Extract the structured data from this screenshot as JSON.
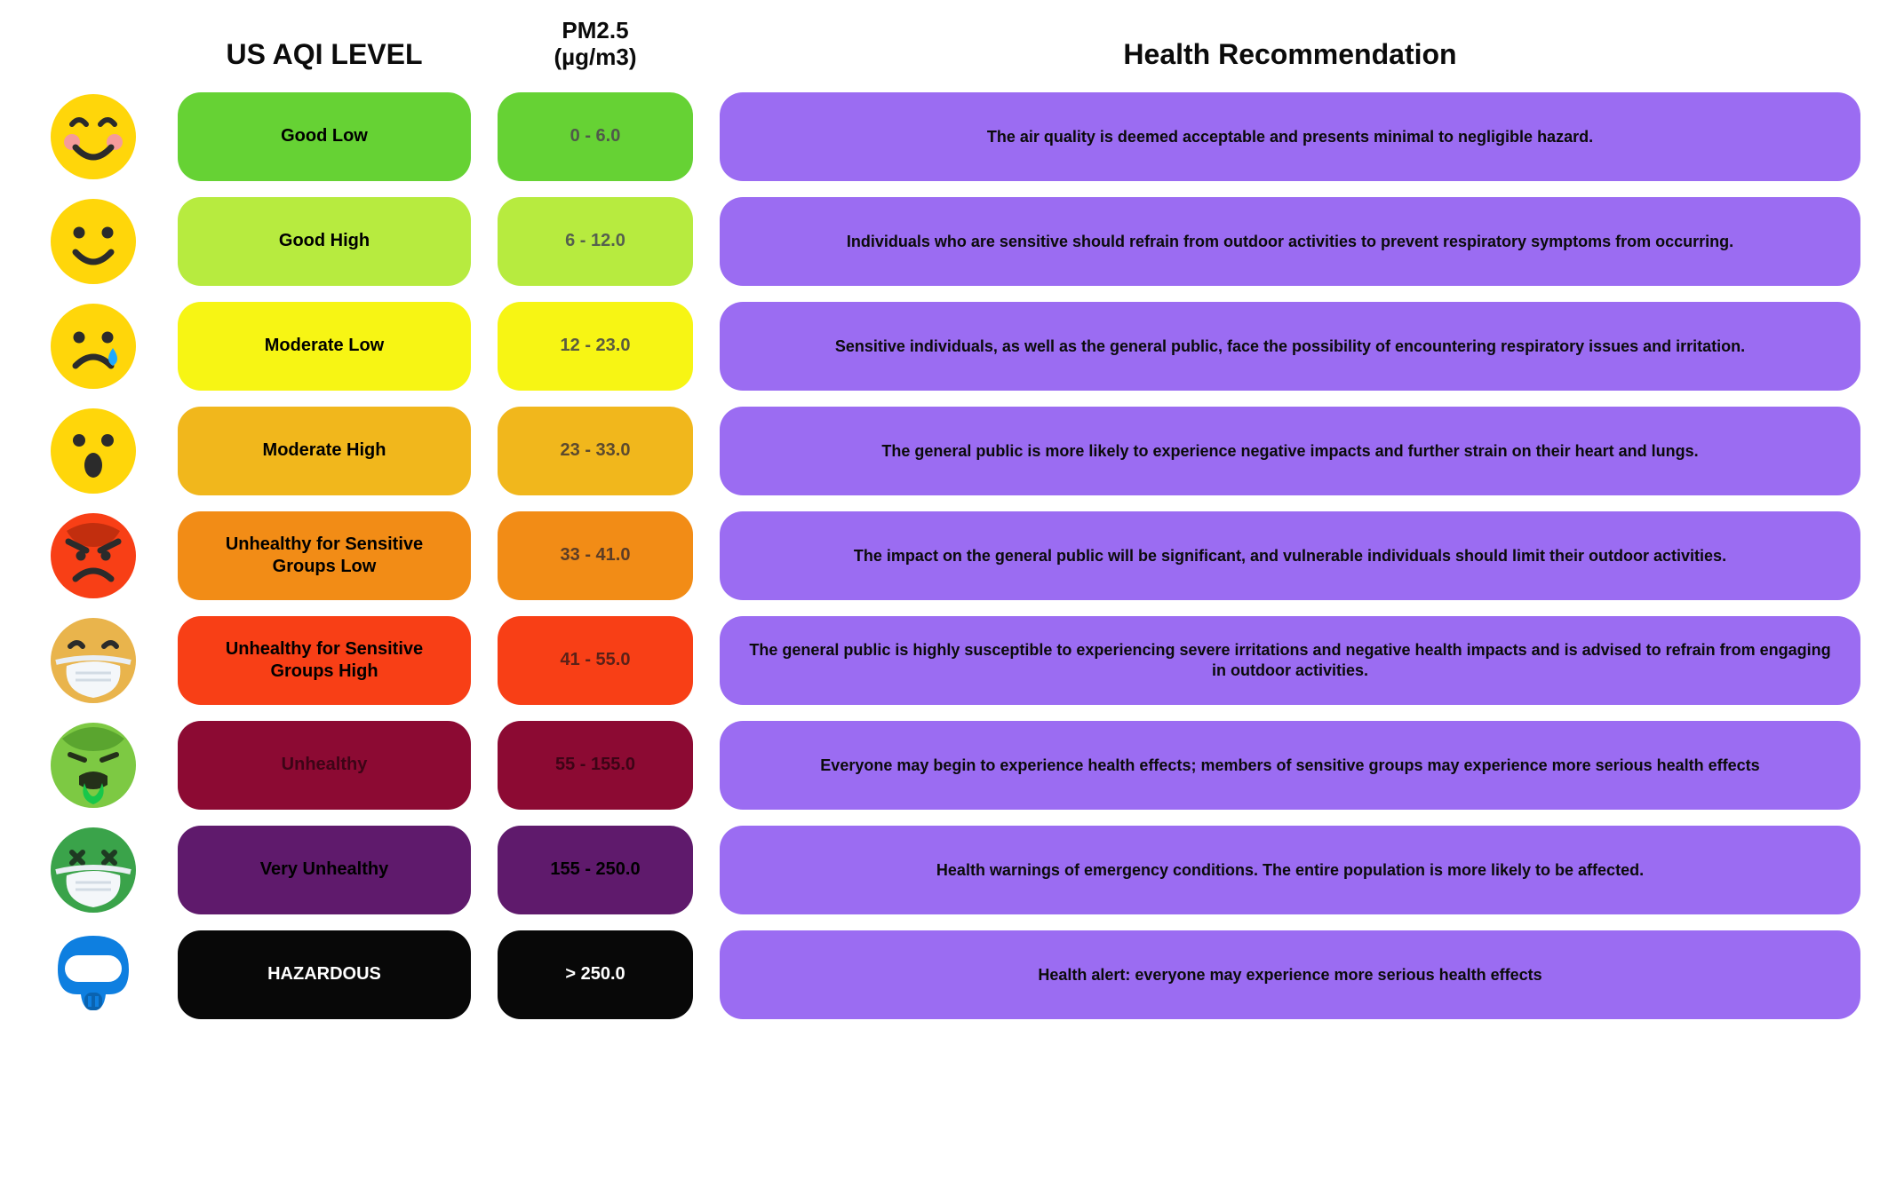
{
  "headers": {
    "aqi": "US AQI LEVEL",
    "pm": "PM2.5\n(µg/m3)",
    "health": "Health Recommendation"
  },
  "health_pill_bg": "#9b6cf2",
  "health_pill_text": "#0b0b0b",
  "rows": [
    {
      "icon": "blush",
      "level": "Good Low",
      "pm": "0 - 6.0",
      "health": "The air quality is deemed acceptable and presents minimal to negligible hazard.",
      "bg": "#66d234",
      "text": "#000000",
      "pm_text": "#4f5a4a"
    },
    {
      "icon": "smile",
      "level": "Good High",
      "pm": "6 - 12.0",
      "health": "Individuals who are sensitive should refrain from outdoor activities to prevent respiratory symptoms from occurring.",
      "bg": "#b7eb3f",
      "text": "#000000",
      "pm_text": "#55604e"
    },
    {
      "icon": "sad-tear",
      "level": "Moderate Low",
      "pm": "12 - 23.0",
      "health": "Sensitive individuals, as well as the general public, face the possibility of encountering respiratory issues and irritation.",
      "bg": "#f7f514",
      "text": "#000000",
      "pm_text": "#5b5b3f"
    },
    {
      "icon": "surprised",
      "level": "Moderate High",
      "pm": "23 - 33.0",
      "health": "The general public is more likely to experience negative impacts and further strain on their heart and lungs.",
      "bg": "#f1b71c",
      "text": "#000000",
      "pm_text": "#5c4a2e"
    },
    {
      "icon": "angry",
      "level": "Unhealthy for Sensitive Groups Low",
      "pm": "33 - 41.0",
      "health": "The impact on the general public will be significant, and vulnerable individuals should limit their outdoor activities.",
      "bg": "#f28c16",
      "text": "#000000",
      "pm_text": "#5d3d26"
    },
    {
      "icon": "mask-yellow",
      "level": "Unhealthy for Sensitive Groups High",
      "pm": "41 - 55.0",
      "health": "The general public is highly susceptible to experiencing severe irritations and negative health impacts and is advised to refrain from engaging in outdoor activities.",
      "bg": "#f83f16",
      "text": "#000000",
      "pm_text": "#5a2118"
    },
    {
      "icon": "sick-green",
      "level": "Unhealthy",
      "pm": "55 - 155.0",
      "health": "Everyone may begin to experience health effects; members of sensitive groups may experience more serious health effects",
      "bg": "#8c0a33",
      "text": "#3d0416",
      "pm_text": "#3d0416"
    },
    {
      "icon": "dead-mask",
      "level": "Very Unhealthy",
      "pm": "155 - 250.0",
      "health": "Health warnings of emergency conditions. The entire population is more likely to be affected.",
      "bg": "#5f1a6c",
      "text": "#000000",
      "pm_text": "#000000"
    },
    {
      "icon": "gasmask",
      "level": "HAZARDOUS",
      "pm": "> 250.0",
      "health": "Health alert: everyone may experience more serious health effects",
      "bg": "#080808",
      "text": "#ffffff",
      "pm_text": "#ffffff"
    }
  ]
}
